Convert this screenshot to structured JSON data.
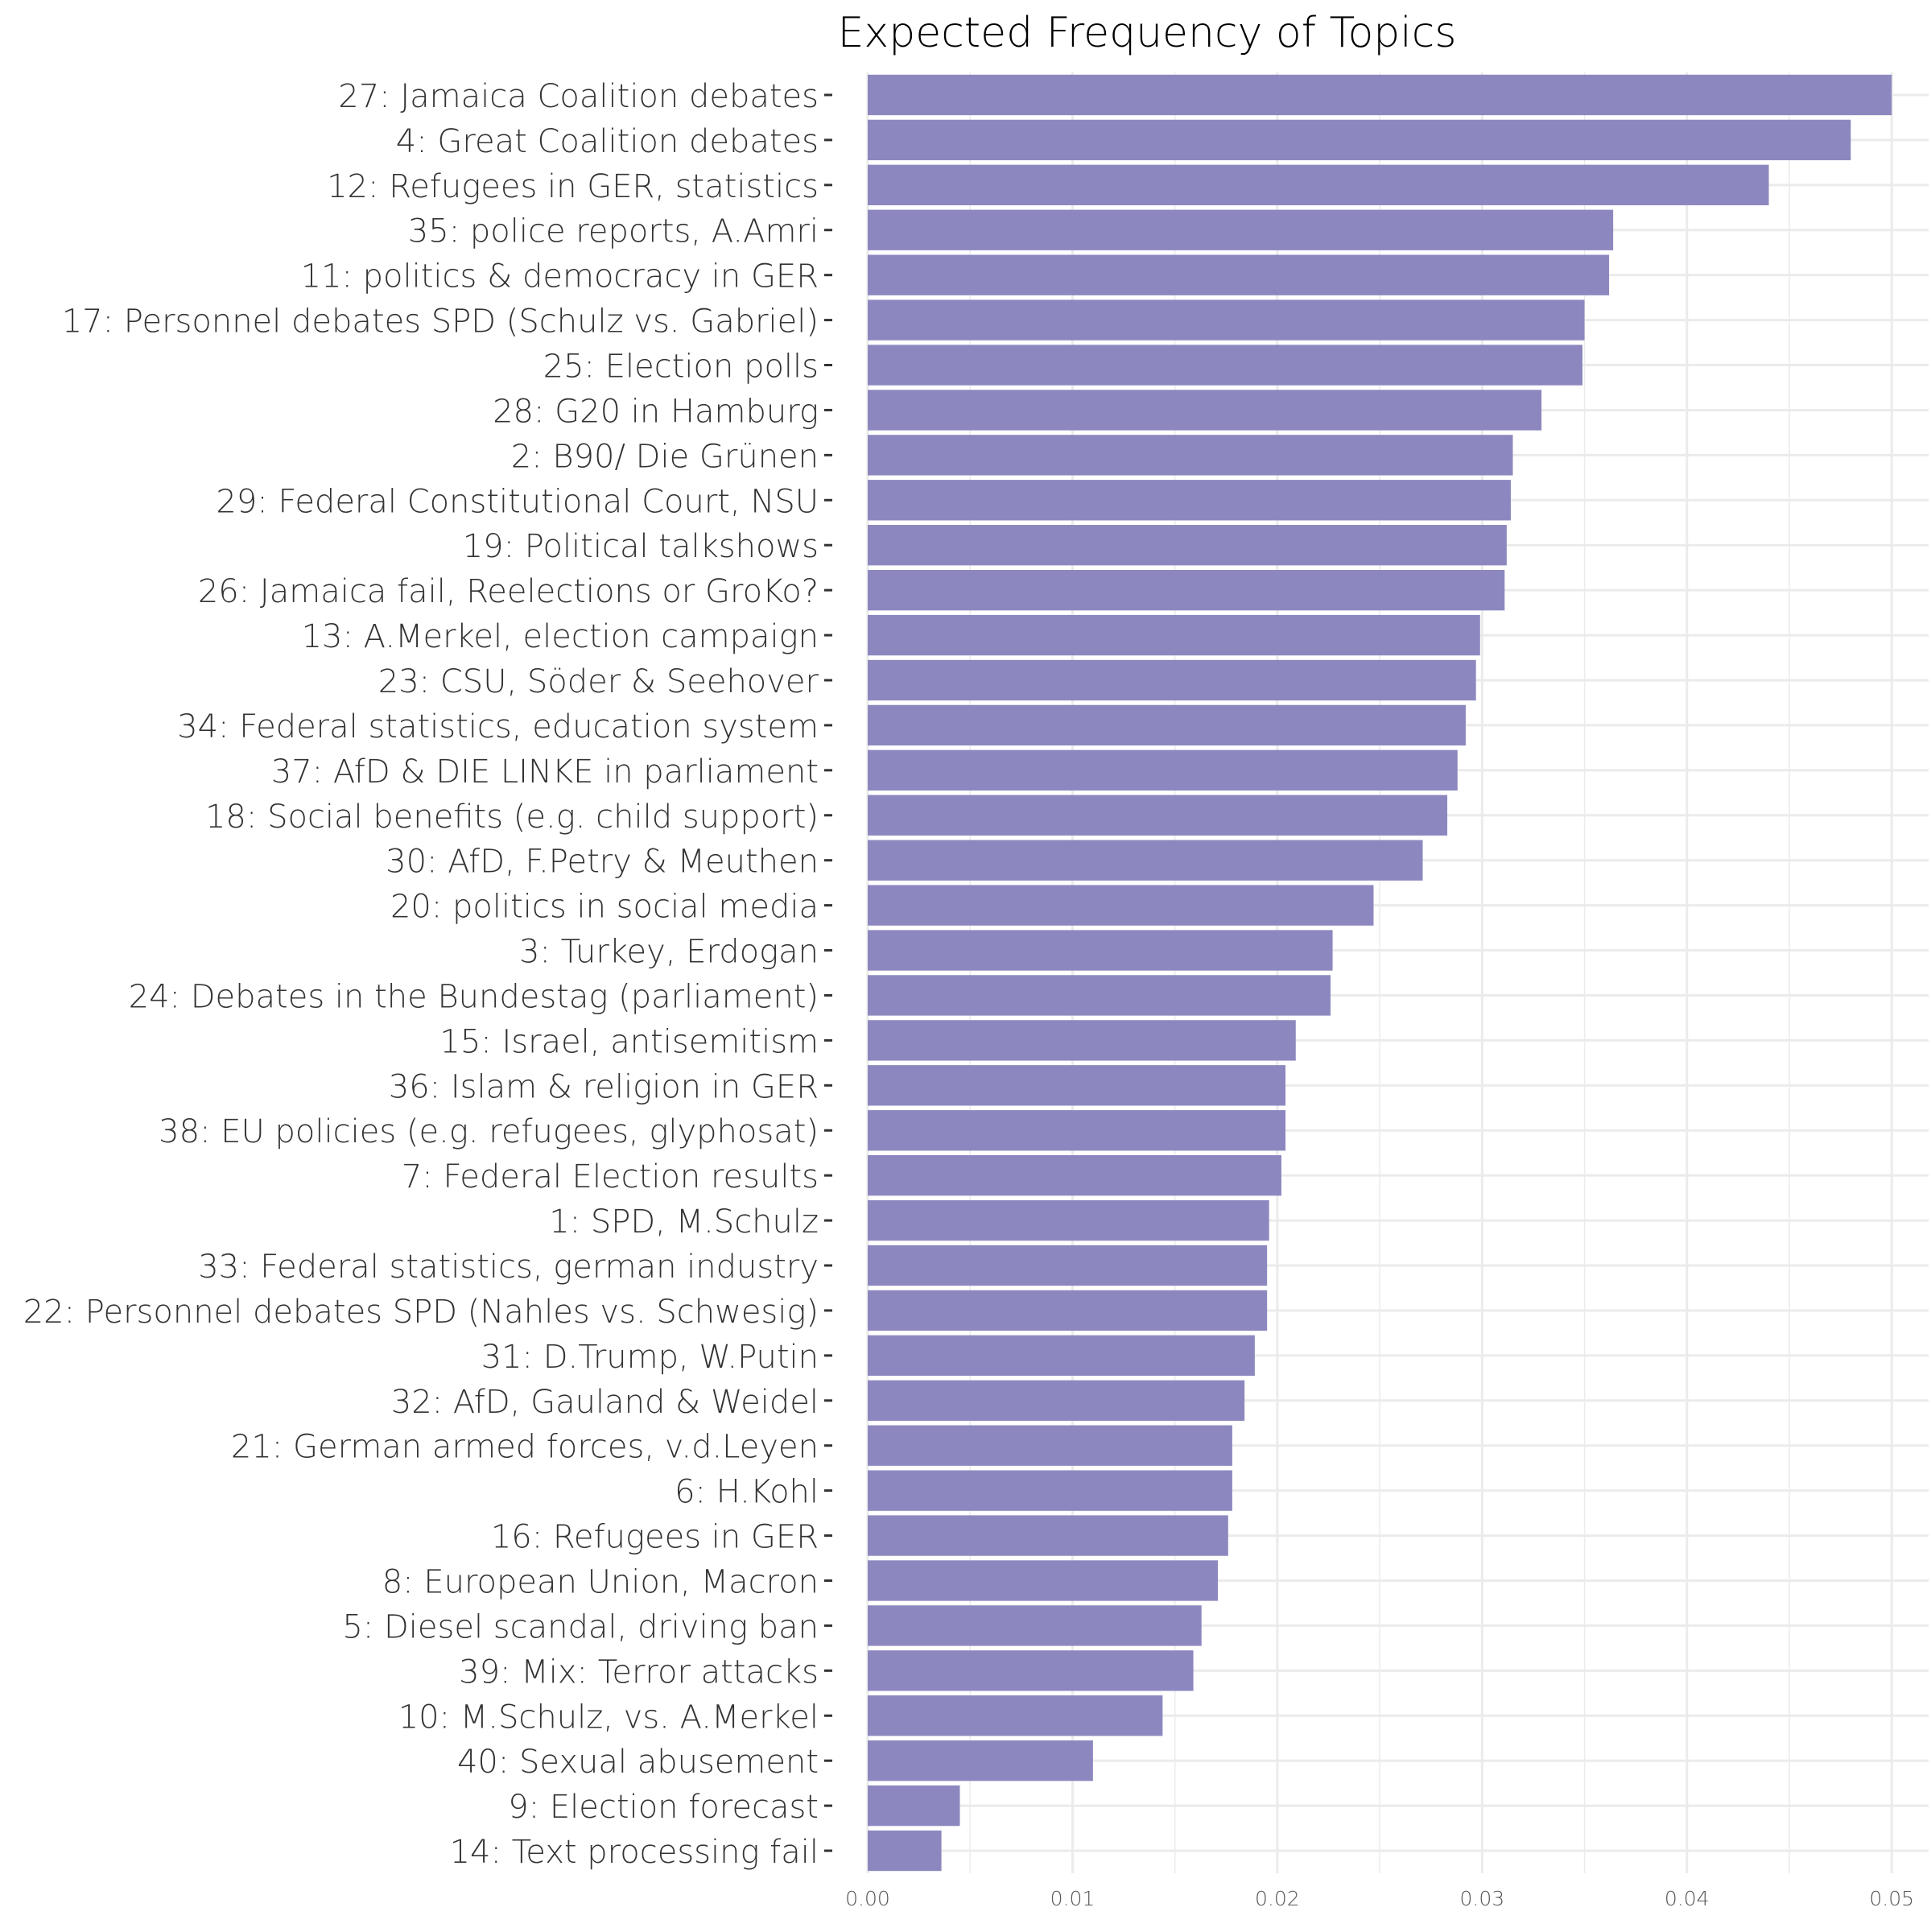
{
  "chart_data": {
    "type": "bar",
    "orientation": "horizontal",
    "title": "Expected Frequency of Topics",
    "xlabel": "",
    "ylabel": "",
    "xlim": [
      0,
      0.0518
    ],
    "x_ticks": [
      "0.00",
      "0.01",
      "0.02",
      "0.03",
      "0.04",
      "0.05"
    ],
    "grid": true,
    "bar_color": "#8c88bf",
    "categories": [
      "27: Jamaica Coalition debates",
      "4: Great Coalition debates",
      "12: Refugees in GER, statistics",
      "35: police reports, A.Amri",
      "11: politics & democracy in GER",
      "17: Personnel debates SPD (Schulz vs. Gabriel)",
      "25: Election polls",
      "28: G20 in Hamburg",
      "2: B90/ Die Grünen",
      "29: Federal Constitutional Court, NSU",
      "19: Political talkshows",
      "26: Jamaica fail, Reelections or GroKo?",
      "13: A.Merkel, election campaign",
      "23: CSU, Söder & Seehover",
      "34: Federal statistics, education system",
      "37: AfD & DIE LINKE in parliament",
      "18: Social benefits (e.g. child support)",
      "30: AfD, F.Petry & Meuthen",
      "20: politics in social media",
      "3: Turkey, Erdogan",
      "24: Debates in the Bundestag (parliament)",
      "15: Israel, antisemitism",
      "36: Islam & religion in GER",
      "38: EU policies (e.g. refugees, glyphosat)",
      "7: Federal Election results",
      "1: SPD, M.Schulz",
      "33: Federal statistics, german industry",
      "22: Personnel debates SPD (Nahles vs. Schwesig)",
      "31: D.Trump, W.Putin",
      "32: AfD, Gauland & Weidel",
      "21: German armed forces, v.d.Leyen",
      "6: H.Kohl",
      "16: Refugees in GER",
      "8: European Union, Macron",
      "5: Diesel scandal, driving ban",
      "39: Mix: Terror attacks",
      "10: M.Schulz, vs. A.Merkel",
      "40: Sexual abusement",
      "9: Election forecast",
      "14: Text processing fail"
    ],
    "values": [
      0.05,
      0.048,
      0.044,
      0.0364,
      0.0362,
      0.035,
      0.0349,
      0.0329,
      0.0315,
      0.0314,
      0.0312,
      0.0311,
      0.0299,
      0.0297,
      0.0292,
      0.0288,
      0.0283,
      0.0271,
      0.0247,
      0.0227,
      0.0226,
      0.0209,
      0.0204,
      0.0204,
      0.0202,
      0.0196,
      0.0195,
      0.0195,
      0.0189,
      0.0184,
      0.0178,
      0.0178,
      0.0176,
      0.0171,
      0.0163,
      0.0159,
      0.0144,
      0.011,
      0.0045,
      0.0036
    ]
  }
}
